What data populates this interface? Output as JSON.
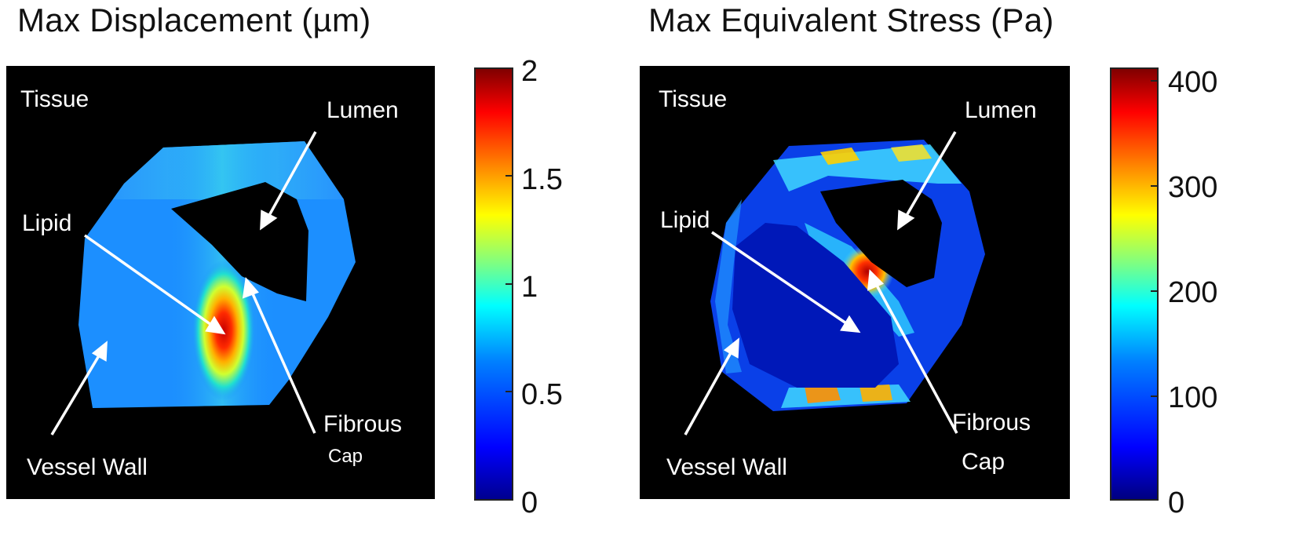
{
  "panels": [
    {
      "title": "Max Displacement (µm)",
      "colorbar_ticks": [
        "0",
        "0.5",
        "1",
        "1.5",
        "2"
      ],
      "labels": {
        "tissue": "Tissue",
        "lumen": "Lumen",
        "lipid": "Lipid",
        "fibrous": "Fibrous",
        "cap": "Cap",
        "vessel_wall": "Vessel Wall"
      }
    },
    {
      "title": "Max Equivalent Stress (Pa)",
      "colorbar_ticks": [
        "0",
        "100",
        "200",
        "300",
        "400"
      ],
      "labels": {
        "tissue": "Tissue",
        "lumen": "Lumen",
        "lipid": "Lipid",
        "fibrous": "Fibrous",
        "cap": "Cap",
        "vessel_wall": "Vessel Wall"
      }
    }
  ],
  "chart_data": [
    {
      "type": "heatmap",
      "title": "Max Displacement (µm)",
      "colorbar": {
        "min": 0,
        "max": 2,
        "ticks": [
          0,
          0.5,
          1,
          1.5,
          2
        ],
        "colormap": "jet"
      },
      "annotations": [
        "Tissue",
        "Lumen",
        "Lipid",
        "Fibrous Cap",
        "Vessel Wall"
      ],
      "peak_region": "Lipid",
      "peak_value_approx": 2,
      "wall_value_approx": 0.6
    },
    {
      "type": "heatmap",
      "title": "Max Equivalent Stress (Pa)",
      "colorbar": {
        "min": 0,
        "max": 400,
        "ticks": [
          0,
          100,
          200,
          300,
          400
        ],
        "colormap": "jet"
      },
      "annotations": [
        "Tissue",
        "Lumen",
        "Lipid",
        "Fibrous Cap",
        "Vessel Wall"
      ],
      "peak_region": "Fibrous Cap",
      "peak_value_approx": 400,
      "wall_value_approx": 120,
      "lipid_value_approx": 20
    }
  ]
}
